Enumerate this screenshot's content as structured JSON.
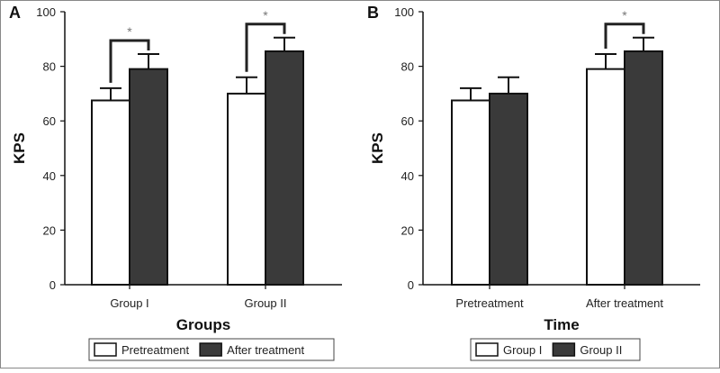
{
  "chart_data": [
    {
      "panel_label": "A",
      "type": "bar",
      "categories": [
        "Group I",
        "Group II"
      ],
      "series": [
        {
          "name": "Pretreatment",
          "values": [
            67.5,
            70.0
          ],
          "errors": [
            4.5,
            6.0
          ],
          "color": "#ffffff"
        },
        {
          "name": "After treatment",
          "values": [
            79.0,
            85.5
          ],
          "errors": [
            5.5,
            5.0
          ],
          "color": "#3a3a3a"
        }
      ],
      "xlabel": "Groups",
      "ylabel": "KPS",
      "ylim": [
        0,
        100
      ],
      "yticks": [
        0,
        20,
        40,
        60,
        80,
        100
      ],
      "grid": false,
      "legend": "bottom",
      "significance": [
        {
          "category_index": 0,
          "label": "*"
        },
        {
          "category_index": 1,
          "label": "*"
        }
      ]
    },
    {
      "panel_label": "B",
      "type": "bar",
      "categories": [
        "Pretreatment",
        "After treatment"
      ],
      "series": [
        {
          "name": "Group I",
          "values": [
            67.5,
            79.0
          ],
          "errors": [
            4.5,
            5.5
          ],
          "color": "#ffffff"
        },
        {
          "name": "Group II",
          "values": [
            70.0,
            85.5
          ],
          "errors": [
            6.0,
            5.0
          ],
          "color": "#3a3a3a"
        }
      ],
      "xlabel": "Time",
      "ylabel": "KPS",
      "ylim": [
        0,
        100
      ],
      "yticks": [
        0,
        20,
        40,
        60,
        80,
        100
      ],
      "grid": false,
      "legend": "bottom",
      "significance": [
        {
          "category_index": 1,
          "label": "*"
        }
      ]
    }
  ]
}
